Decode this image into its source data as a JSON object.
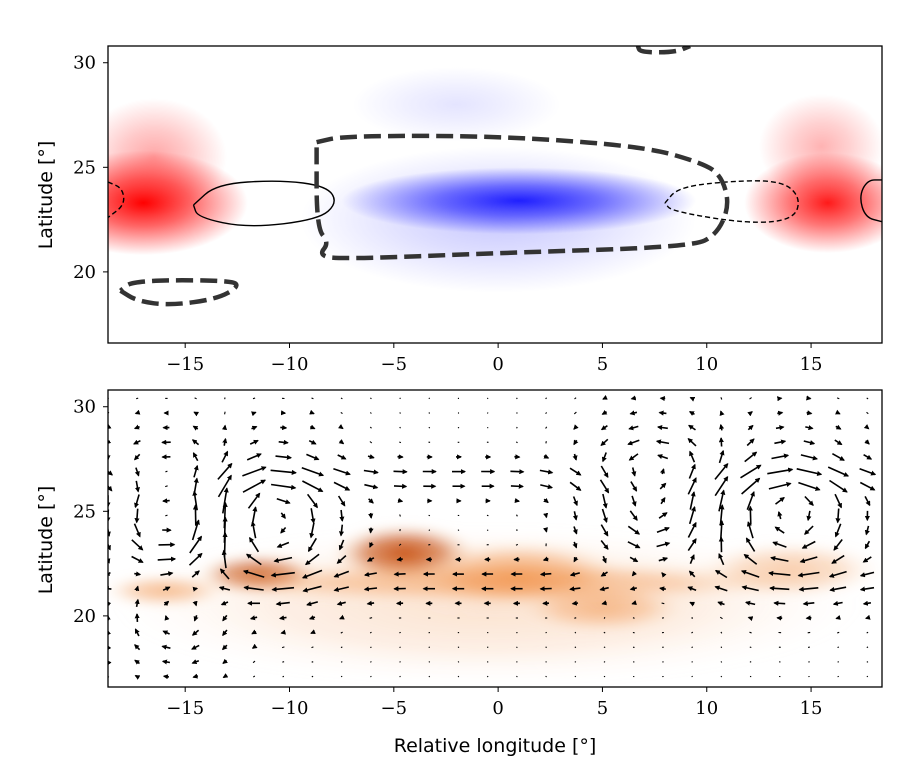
{
  "figure": {
    "xlabel": "Relative longitude [°]",
    "ylabel_top": "Latitude [°]",
    "ylabel_bottom": "Latitude [°]"
  },
  "chart_data": [
    {
      "type": "heatmap",
      "panel": "top",
      "title": "",
      "xlabel": "",
      "ylabel": "Latitude [°]",
      "xlim": [
        -18.7,
        18.4
      ],
      "ylim": [
        16.6,
        30.8
      ],
      "xticks": [
        -15,
        -10,
        -5,
        0,
        5,
        10,
        15
      ],
      "xtick_labels": [
        "−15",
        "−10",
        "−5",
        "0",
        "5",
        "10",
        "15"
      ],
      "yticks": [
        20,
        25,
        30
      ],
      "ytick_labels": [
        "20",
        "25",
        "30"
      ],
      "colormap": "bwr",
      "colors": {
        "positive": "#ff0000",
        "negative": "#1f1fff",
        "contour": "#333333"
      },
      "anomalies": [
        {
          "sign": "positive",
          "center": [
            -17.0,
            23.3
          ],
          "half_width": [
            5.0,
            2.5
          ],
          "strength": 1.0
        },
        {
          "sign": "positive",
          "center": [
            -16.5,
            25.5
          ],
          "half_width": [
            3.5,
            2.8
          ],
          "strength": 0.35
        },
        {
          "sign": "positive",
          "center": [
            15.8,
            23.3
          ],
          "half_width": [
            4.0,
            2.4
          ],
          "strength": 0.9
        },
        {
          "sign": "positive",
          "center": [
            15.5,
            26.0
          ],
          "half_width": [
            3.0,
            2.5
          ],
          "strength": 0.3
        },
        {
          "sign": "negative",
          "center": [
            1.0,
            23.4
          ],
          "half_width": [
            8.5,
            1.6
          ],
          "strength": 1.0
        },
        {
          "sign": "negative",
          "center": [
            0.0,
            22.5
          ],
          "half_width": [
            9.5,
            3.5
          ],
          "strength": 0.25
        },
        {
          "sign": "negative",
          "center": [
            -2.0,
            28.0
          ],
          "half_width": [
            5.0,
            1.8
          ],
          "strength": 0.12
        }
      ],
      "contours": [
        {
          "style": "solid-thin",
          "points": [
            [
              -14.6,
              23.2
            ],
            [
              -13.5,
              24.2
            ],
            [
              -10.5,
              24.4
            ],
            [
              -8.2,
              24.1
            ],
            [
              -7.7,
              23.3
            ],
            [
              -8.6,
              22.5
            ],
            [
              -12,
              22.1
            ],
            [
              -14.4,
              22.6
            ],
            [
              -14.6,
              23.2
            ]
          ]
        },
        {
          "style": "solid-thin",
          "points": [
            [
              18.4,
              24.4
            ],
            [
              17.7,
              24.4
            ],
            [
              17.3,
              23.6
            ],
            [
              17.6,
              22.6
            ],
            [
              18.4,
              22.4
            ]
          ]
        },
        {
          "style": "dashed-thin",
          "points": [
            [
              -18.7,
              24.3
            ],
            [
              -18.0,
              24.0
            ],
            [
              -17.9,
              23.2
            ],
            [
              -18.7,
              22.6
            ]
          ]
        },
        {
          "style": "dashed-thin",
          "points": [
            [
              8.0,
              23.3
            ],
            [
              8.6,
              24.0
            ],
            [
              10.5,
              24.3
            ],
            [
              13.5,
              24.4
            ],
            [
              14.5,
              23.6
            ],
            [
              14.2,
              22.5
            ],
            [
              12,
              22.3
            ],
            [
              8.3,
              22.9
            ],
            [
              8.0,
              23.3
            ]
          ]
        },
        {
          "style": "dashed-thick",
          "points": [
            [
              -8.7,
              26.2
            ],
            [
              -7.4,
              26.5
            ],
            [
              0,
              26.5
            ],
            [
              7.0,
              26.0
            ],
            [
              9.8,
              25.2
            ],
            [
              10.7,
              24.6
            ],
            [
              11.1,
              23.2
            ],
            [
              10.5,
              21.8
            ],
            [
              9.3,
              21.2
            ],
            [
              0,
              20.9
            ],
            [
              -7.6,
              20.6
            ],
            [
              -8.6,
              20.8
            ],
            [
              -8.1,
              21.4
            ],
            [
              -8.7,
              22.1
            ],
            [
              -8.7,
              26.2
            ]
          ]
        },
        {
          "style": "dashed-thick",
          "points": [
            [
              -18.1,
              19.1
            ],
            [
              -17.3,
              18.6
            ],
            [
              -15.7,
              18.4
            ],
            [
              -13.5,
              18.7
            ],
            [
              -12.4,
              19.3
            ],
            [
              -12.8,
              19.6
            ],
            [
              -17.5,
              19.6
            ],
            [
              -18.1,
              19.1
            ]
          ]
        },
        {
          "style": "dashed-thick",
          "points": [
            [
              6.7,
              30.8
            ],
            [
              6.8,
              30.5
            ],
            [
              8.5,
              30.5
            ],
            [
              9.2,
              30.8
            ]
          ]
        }
      ]
    },
    {
      "type": "heatmap",
      "panel": "bottom",
      "overlay": "quiver",
      "title": "",
      "xlabel": "Relative longitude [°]",
      "ylabel": "Latitude [°]",
      "xlim": [
        -18.7,
        18.4
      ],
      "ylim": [
        16.6,
        30.8
      ],
      "xticks": [
        -15,
        -10,
        -5,
        0,
        5,
        10,
        15
      ],
      "xtick_labels": [
        "−15",
        "−10",
        "−5",
        "0",
        "5",
        "10",
        "15"
      ],
      "yticks": [
        20,
        25,
        30
      ],
      "ytick_labels": [
        "20",
        "25",
        "30"
      ],
      "colormap": "Oranges",
      "colors": {
        "high": "#c24400",
        "mid": "#f08a3c",
        "low": "#fde0c5",
        "arrow": "#000000"
      },
      "field": [
        {
          "center": [
            -4.5,
            23.0
          ],
          "half_width": [
            3.5,
            1.4
          ],
          "strength": 1.0
        },
        {
          "center": [
            -11.5,
            22.0
          ],
          "half_width": [
            3.0,
            1.0
          ],
          "strength": 0.85
        },
        {
          "center": [
            -16.0,
            21.2
          ],
          "half_width": [
            3.0,
            0.8
          ],
          "strength": 0.6
        },
        {
          "center": [
            1.0,
            22.0
          ],
          "half_width": [
            5.0,
            1.6
          ],
          "strength": 0.7
        },
        {
          "center": [
            0.0,
            21.6
          ],
          "half_width": [
            16.0,
            1.0
          ],
          "strength": 0.55
        },
        {
          "center": [
            5.0,
            20.4
          ],
          "half_width": [
            4.0,
            1.2
          ],
          "strength": 0.55
        },
        {
          "center": [
            14.0,
            22.2
          ],
          "half_width": [
            4.5,
            1.4
          ],
          "strength": 0.45
        },
        {
          "center": [
            -0.5,
            20.5
          ],
          "half_width": [
            18.0,
            3.8
          ],
          "strength": 0.25
        }
      ],
      "quiver": {
        "x_start": -18.7,
        "x_step": 1.4,
        "x_count": 27,
        "y_start": 17.1,
        "y_step": 0.7,
        "y_count": 20,
        "vortices": [
          {
            "center": [
              -15.5,
              24.5
            ],
            "strength": 1.0,
            "radius": 3.0
          },
          {
            "center": [
              -11.0,
              24.5
            ],
            "strength": -1.0,
            "radius": 3.0
          },
          {
            "center": [
              7.5,
              25.5
            ],
            "strength": 0.9,
            "radius": 3.0
          },
          {
            "center": [
              14.0,
              25.0
            ],
            "strength": -0.9,
            "radius": 3.0
          },
          {
            "center": [
              -15.5,
              20.5
            ],
            "strength": -0.7,
            "radius": 2.5
          }
        ],
        "jets": [
          {
            "lat": 26.6,
            "speed": 1.2,
            "width": 0.9
          },
          {
            "lat": 21.6,
            "speed": -1.0,
            "width": 1.1
          }
        ]
      }
    }
  ]
}
